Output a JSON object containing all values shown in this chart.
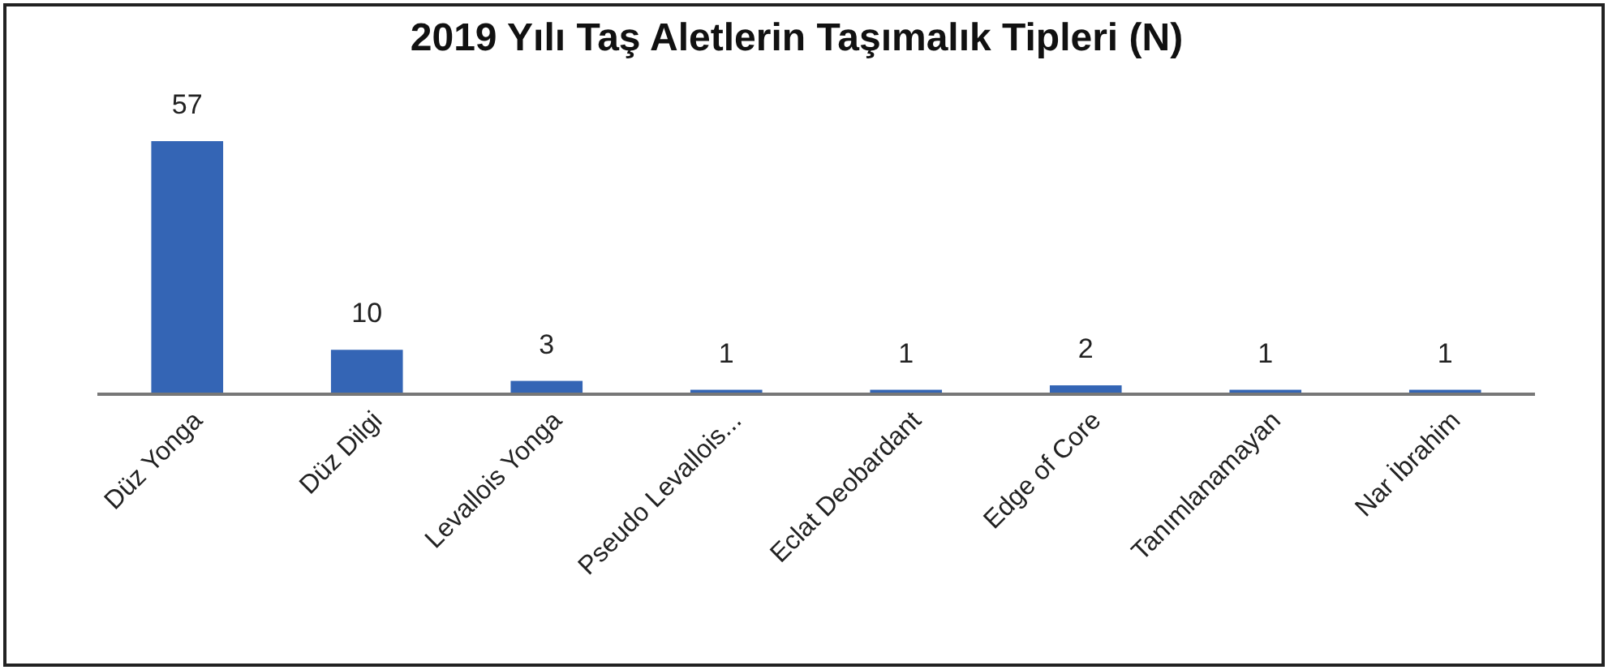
{
  "chart_data": {
    "type": "bar",
    "title": "2019 Yılı Taş Aletlerin Taşımalık Tipleri (N)",
    "categories": [
      "Düz Yonga",
      "Düz Dilgi",
      "Levallois Yonga",
      "Pseudo Levallois...",
      "Eclat Deobardant",
      "Edge of Core",
      "Tanımlanamayan",
      "Nar İbrahim"
    ],
    "values": [
      57,
      10,
      3,
      1,
      1,
      2,
      1,
      1
    ],
    "color": "#3465b5",
    "data_labels": true
  }
}
